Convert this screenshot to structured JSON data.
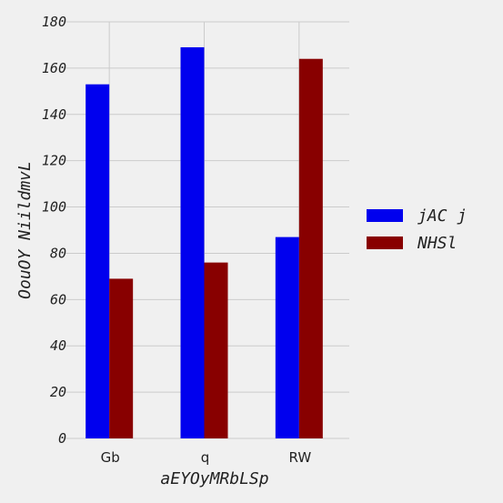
{
  "chart_data": {
    "type": "bar",
    "title": "",
    "xlabel": "aEYOyMRbLSp",
    "ylabel": "OouOY NiildmvL",
    "categories": [
      "Gb",
      "q",
      "RW"
    ],
    "series": [
      {
        "name": "jAC j",
        "values": [
          153,
          169,
          87
        ],
        "color": "#0000ee"
      },
      {
        "name": "NHSl",
        "values": [
          69,
          76,
          164
        ],
        "color": "#880000"
      }
    ],
    "ylim": [
      0,
      180
    ],
    "yticks": [
      0,
      20,
      40,
      60,
      80,
      100,
      120,
      140,
      160,
      180
    ],
    "grid": true,
    "legend_position": "right"
  }
}
